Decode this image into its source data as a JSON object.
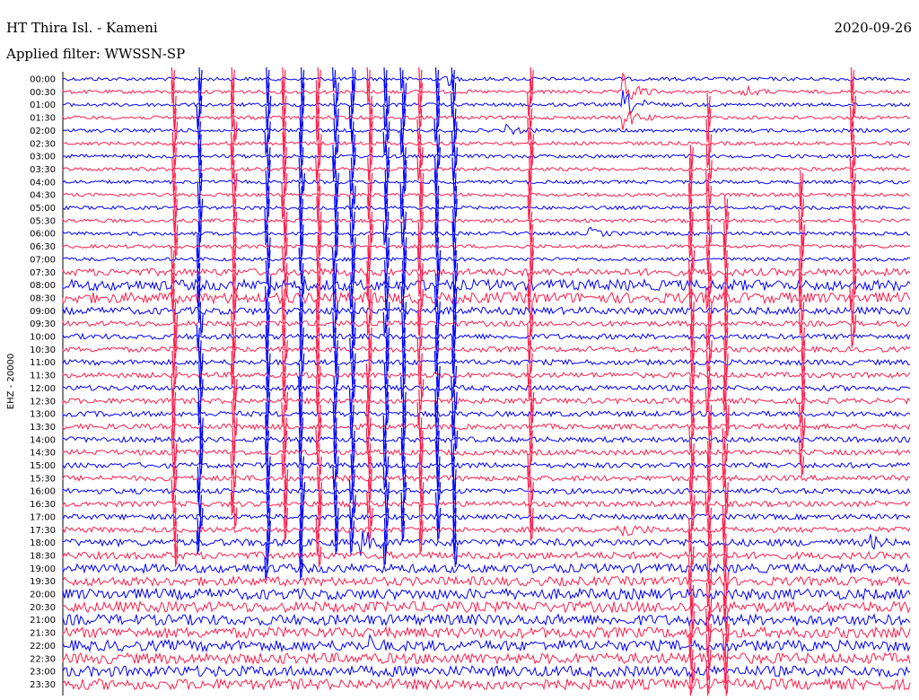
{
  "chart_data": {
    "type": "line",
    "station_title": "HT Thira Isl. - Kameni",
    "date": "2020-09-26",
    "filter_label": "Applied filter: WWSSN-SP",
    "ylabel": "EHZ - 20000",
    "row_interval_minutes": 30,
    "series_colors": [
      "#0000ff",
      "#ff1f4b"
    ],
    "tick_labels": [
      "00:00",
      "00:30",
      "01:00",
      "01:30",
      "02:00",
      "02:30",
      "03:00",
      "03:30",
      "04:00",
      "04:30",
      "05:00",
      "05:30",
      "06:00",
      "06:30",
      "07:00",
      "07:30",
      "08:00",
      "08:30",
      "09:00",
      "09:30",
      "10:00",
      "10:30",
      "11:00",
      "11:30",
      "12:00",
      "12:30",
      "13:00",
      "13:30",
      "14:00",
      "14:30",
      "15:00",
      "15:30",
      "16:00",
      "16:30",
      "17:00",
      "17:30",
      "18:00",
      "18:30",
      "19:00",
      "19:30",
      "20:00",
      "20:30",
      "21:00",
      "21:30",
      "22:00",
      "22:30",
      "23:00",
      "23:30"
    ],
    "noise_level": [
      2,
      2,
      2,
      2,
      2,
      2,
      2,
      2,
      2,
      2,
      2,
      2,
      2,
      2,
      2,
      4,
      6,
      6,
      4,
      3,
      3,
      3,
      3,
      3,
      3,
      3,
      3,
      3,
      3,
      3,
      3,
      3,
      3,
      3,
      3,
      3,
      4,
      4,
      5,
      5,
      6,
      6,
      6,
      6,
      6,
      6,
      6,
      6
    ],
    "spike_columns": [
      {
        "x": 0.13,
        "from": 0,
        "to": 37,
        "series": 1
      },
      {
        "x": 0.16,
        "from": 0,
        "to": 36,
        "series": 0
      },
      {
        "x": 0.2,
        "from": 0,
        "to": 34,
        "series": 1
      },
      {
        "x": 0.24,
        "from": 0,
        "to": 38,
        "series": 0
      },
      {
        "x": 0.26,
        "from": 0,
        "to": 35,
        "series": 1
      },
      {
        "x": 0.28,
        "from": 0,
        "to": 38,
        "series": 0
      },
      {
        "x": 0.3,
        "from": 0,
        "to": 37,
        "series": 1
      },
      {
        "x": 0.32,
        "from": 0,
        "to": 36,
        "series": 0
      },
      {
        "x": 0.34,
        "from": 0,
        "to": 36,
        "series": 0
      },
      {
        "x": 0.36,
        "from": 0,
        "to": 35,
        "series": 1
      },
      {
        "x": 0.38,
        "from": 0,
        "to": 37,
        "series": 0
      },
      {
        "x": 0.4,
        "from": 0,
        "to": 35,
        "series": 0
      },
      {
        "x": 0.42,
        "from": 0,
        "to": 36,
        "series": 1
      },
      {
        "x": 0.44,
        "from": 0,
        "to": 35,
        "series": 0
      },
      {
        "x": 0.46,
        "from": 0,
        "to": 37,
        "series": 0
      },
      {
        "x": 0.55,
        "from": 0,
        "to": 35,
        "series": 1
      },
      {
        "x": 0.74,
        "from": 6,
        "to": 47,
        "series": 1
      },
      {
        "x": 0.76,
        "from": 2,
        "to": 47,
        "series": 1
      },
      {
        "x": 0.78,
        "from": 10,
        "to": 47,
        "series": 1
      },
      {
        "x": 0.87,
        "from": 8,
        "to": 30,
        "series": 1
      },
      {
        "x": 0.93,
        "from": 0,
        "to": 20,
        "series": 1
      }
    ],
    "event_bursts": [
      {
        "row": 0,
        "x": 0.45,
        "w": 0.02,
        "amp": 14
      },
      {
        "row": 1,
        "x": 0.66,
        "w": 0.04,
        "amp": 22
      },
      {
        "row": 2,
        "x": 0.66,
        "w": 0.05,
        "amp": 16
      },
      {
        "row": 3,
        "x": 0.66,
        "w": 0.04,
        "amp": 14
      },
      {
        "row": 1,
        "x": 0.8,
        "w": 0.04,
        "amp": 8
      },
      {
        "row": 4,
        "x": 0.52,
        "w": 0.04,
        "amp": 6
      },
      {
        "row": 12,
        "x": 0.62,
        "w": 0.04,
        "amp": 6
      },
      {
        "row": 36,
        "x": 0.35,
        "w": 0.04,
        "amp": 16
      },
      {
        "row": 35,
        "x": 0.65,
        "w": 0.05,
        "amp": 14
      },
      {
        "row": 36,
        "x": 0.95,
        "w": 0.03,
        "amp": 8
      },
      {
        "row": 44,
        "x": 0.36,
        "w": 0.02,
        "amp": 10
      }
    ]
  }
}
